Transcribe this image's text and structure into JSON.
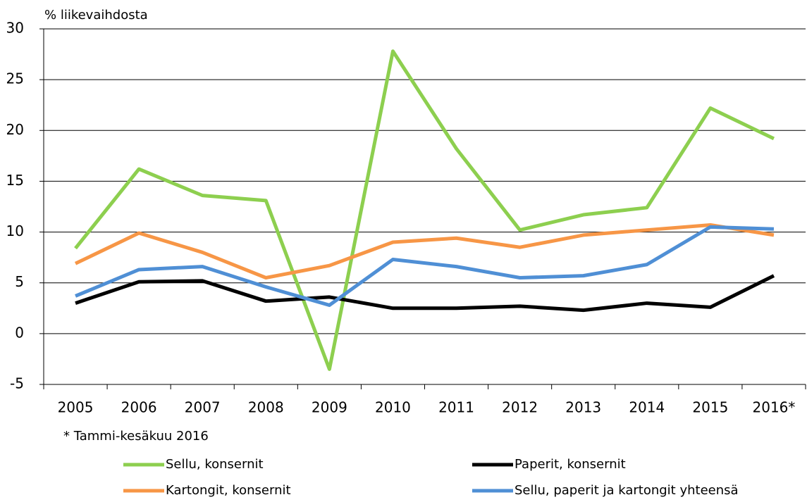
{
  "chart_data": {
    "type": "line",
    "y_axis_label": "% liikevaihdosta",
    "footnote": "* Tammi-kesäkuu 2016",
    "categories": [
      "2005",
      "2006",
      "2007",
      "2008",
      "2009",
      "2010",
      "2011",
      "2012",
      "2013",
      "2014",
      "2015",
      "2016*"
    ],
    "series": [
      {
        "name": "Sellu, konsernit",
        "color": "#8dcf4f",
        "values": [
          8.4,
          16.2,
          13.6,
          13.1,
          -3.5,
          27.8,
          18.2,
          10.2,
          11.7,
          12.4,
          22.2,
          19.2
        ]
      },
      {
        "name": "Paperit, konsernit",
        "color": "#000000",
        "values": [
          3.0,
          5.1,
          5.2,
          3.2,
          3.6,
          2.5,
          2.5,
          2.7,
          2.3,
          3.0,
          2.6,
          5.7
        ]
      },
      {
        "name": "Kartongit, konsernit",
        "color": "#f79646",
        "values": [
          6.9,
          9.9,
          8.0,
          5.5,
          6.7,
          9.0,
          9.4,
          8.5,
          9.7,
          10.2,
          10.7,
          9.7
        ]
      },
      {
        "name": "Sellu, paperit ja kartongit yhteensä",
        "color": "#4f8fd5",
        "values": [
          3.7,
          6.3,
          6.6,
          4.6,
          2.8,
          7.3,
          6.6,
          5.5,
          5.7,
          6.8,
          10.5,
          10.3
        ]
      }
    ],
    "ylim": [
      -5,
      30
    ],
    "yticks": [
      -5,
      0,
      5,
      10,
      15,
      20,
      25,
      30
    ],
    "grid": true
  }
}
